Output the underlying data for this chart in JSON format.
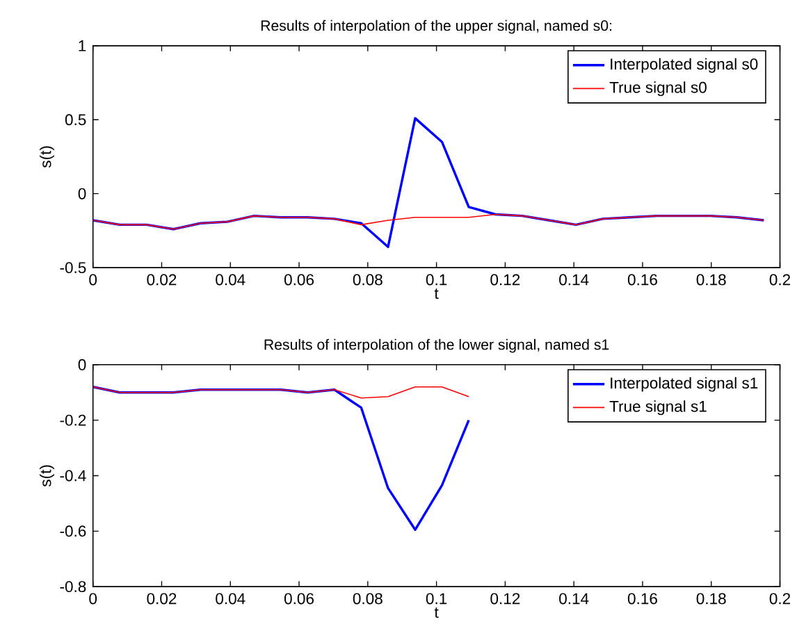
{
  "chart_data": [
    {
      "type": "line",
      "title": "Results of interpolation of the upper signal, named s0:",
      "xlabel": "t",
      "ylabel": "s(t)",
      "x": [
        0,
        0.0078,
        0.0156,
        0.0234,
        0.0313,
        0.0391,
        0.0469,
        0.0547,
        0.0625,
        0.0703,
        0.0781,
        0.0859,
        0.0938,
        0.1016,
        0.1094,
        0.1172,
        0.125,
        0.1328,
        0.1406,
        0.1484,
        0.1563,
        0.1641,
        0.1719,
        0.1797,
        0.1875,
        0.1953
      ],
      "series": [
        {
          "name": "Interpolated signal s0",
          "color": "#0000ff",
          "values": [
            -0.18,
            -0.21,
            -0.21,
            -0.24,
            -0.2,
            -0.19,
            -0.15,
            -0.16,
            -0.16,
            -0.17,
            -0.2,
            -0.36,
            0.51,
            0.35,
            -0.09,
            -0.14,
            -0.15,
            -0.18,
            -0.21,
            -0.17,
            -0.16,
            -0.15,
            -0.15,
            -0.15,
            -0.16,
            -0.18
          ]
        },
        {
          "name": "True signal s0",
          "color": "#ff0000",
          "values": [
            -0.18,
            -0.21,
            -0.21,
            -0.24,
            -0.2,
            -0.19,
            -0.15,
            -0.16,
            -0.16,
            -0.17,
            -0.21,
            -0.18,
            -0.16,
            -0.16,
            -0.16,
            -0.14,
            -0.15,
            -0.18,
            -0.21,
            -0.17,
            -0.16,
            -0.15,
            -0.15,
            -0.15,
            -0.16,
            -0.18
          ]
        }
      ],
      "xlim": [
        0,
        0.2
      ],
      "ylim": [
        -0.5,
        1
      ],
      "xticks": [
        0,
        0.02,
        0.04,
        0.06,
        0.08,
        0.1,
        0.12,
        0.14,
        0.16,
        0.18,
        0.2
      ],
      "yticks": [
        -0.5,
        0,
        0.5,
        1
      ],
      "legend": "top right",
      "grid": false,
      "marker": "none",
      "line_style": "solid"
    },
    {
      "type": "line",
      "title": "Results of interpolation of the lower signal, named s1",
      "xlabel": "t",
      "ylabel": "s(t)",
      "x": [
        0,
        0.0078,
        0.0156,
        0.0234,
        0.0313,
        0.0391,
        0.0469,
        0.0547,
        0.0625,
        0.0703,
        0.0781,
        0.0859,
        0.0938,
        0.1016,
        0.1094
      ],
      "series": [
        {
          "name": "Interpolated signal s1",
          "color": "#0000ff",
          "values": [
            -0.08,
            -0.1,
            -0.1,
            -0.1,
            -0.09,
            -0.09,
            -0.09,
            -0.09,
            -0.1,
            -0.09,
            -0.155,
            -0.445,
            -0.595,
            -0.435,
            -0.2
          ]
        },
        {
          "name": "True signal s1",
          "color": "#ff0000",
          "values": [
            -0.08,
            -0.1,
            -0.1,
            -0.1,
            -0.09,
            -0.09,
            -0.09,
            -0.09,
            -0.1,
            -0.09,
            -0.12,
            -0.115,
            -0.08,
            -0.08,
            -0.115
          ]
        }
      ],
      "xlim": [
        0,
        0.2
      ],
      "ylim": [
        -0.8,
        0
      ],
      "xticks": [
        0,
        0.02,
        0.04,
        0.06,
        0.08,
        0.1,
        0.12,
        0.14,
        0.16,
        0.18,
        0.2
      ],
      "yticks": [
        -0.8,
        -0.6,
        -0.4,
        -0.2,
        0
      ],
      "legend": "top right",
      "grid": false,
      "marker": "none",
      "line_style": "solid"
    }
  ]
}
